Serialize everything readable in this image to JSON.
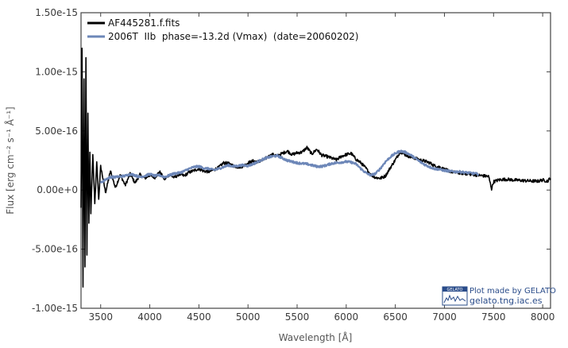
{
  "chart_data": {
    "type": "line",
    "title": "",
    "xlabel": "Wavelength [Å]",
    "ylabel": "Flux [erg cm⁻² s⁻¹ Å⁻¹]",
    "xlim": [
      3300,
      8080
    ],
    "ylim": [
      -1e-15,
      1.5e-15
    ],
    "x_ticks": [
      3500,
      4000,
      4500,
      5000,
      5500,
      6000,
      6500,
      7000,
      7500,
      8000
    ],
    "x_tick_labels": [
      "3500",
      "4000",
      "4500",
      "5000",
      "5500",
      "6000",
      "6500",
      "7000",
      "7500",
      "8000"
    ],
    "y_ticks": [
      -1e-15,
      -5e-16,
      0,
      5e-16,
      1e-15,
      1.5e-15
    ],
    "y_tick_labels": [
      "-1.00e-15",
      "-5.00e-16",
      "0.00e+0",
      "5.00e-16",
      "1.00e-15",
      "1.50e-15"
    ],
    "grid": false,
    "legend_position": "top-left",
    "series": [
      {
        "name": "AF445281.f.fits",
        "color": "#000000",
        "noise": 1.3e-17,
        "x": [
          3300,
          3310,
          3320,
          3330,
          3340,
          3350,
          3360,
          3370,
          3380,
          3390,
          3400,
          3420,
          3440,
          3460,
          3480,
          3500,
          3550,
          3600,
          3650,
          3700,
          3750,
          3800,
          3850,
          3900,
          3950,
          4000,
          4050,
          4100,
          4150,
          4200,
          4250,
          4300,
          4350,
          4400,
          4450,
          4500,
          4550,
          4600,
          4650,
          4700,
          4750,
          4800,
          4850,
          4900,
          4950,
          5000,
          5050,
          5100,
          5150,
          5200,
          5250,
          5300,
          5350,
          5400,
          5450,
          5500,
          5550,
          5600,
          5650,
          5700,
          5750,
          5800,
          5850,
          5900,
          5950,
          6000,
          6050,
          6100,
          6150,
          6200,
          6250,
          6300,
          6350,
          6400,
          6450,
          6500,
          6550,
          6600,
          6650,
          6700,
          6750,
          6800,
          6850,
          6900,
          6950,
          7000,
          7050,
          7100,
          7150,
          7200,
          7250,
          7300,
          7350,
          7400,
          7450,
          7460,
          7480,
          7500,
          7550,
          7600,
          7650,
          7700,
          7750,
          7800,
          7850,
          7900,
          7950,
          8000,
          8050,
          8080
        ],
        "y": [
          -1.5e-16,
          1.2e-15,
          -8.2e-16,
          9.4e-16,
          -6.5e-16,
          1.12e-15,
          -5.5e-16,
          6.5e-16,
          -2.8e-16,
          3.2e-16,
          -2e-16,
          3e-16,
          -1.2e-16,
          2.3e-16,
          -8e-17,
          2e-16,
          -2e-17,
          1.6e-16,
          2e-17,
          1.3e-16,
          4e-17,
          1.35e-16,
          6e-17,
          1.3e-16,
          1e-16,
          1.25e-16,
          1.05e-16,
          1.55e-16,
          9e-17,
          1.3e-16,
          1.05e-16,
          1.35e-16,
          1.2e-16,
          1.5e-16,
          1.65e-16,
          1.8e-16,
          1.6e-16,
          1.55e-16,
          1.7e-16,
          1.9e-16,
          2.3e-16,
          2.25e-16,
          2.05e-16,
          1.95e-16,
          2e-16,
          2.3e-16,
          2.45e-16,
          2.4e-16,
          2.5e-16,
          2.8e-16,
          3e-16,
          2.9e-16,
          3.1e-16,
          3.3e-16,
          3e-16,
          3.15e-16,
          3.2e-16,
          3.6e-16,
          3.05e-16,
          3.45e-16,
          2.95e-16,
          2.85e-16,
          2.7e-16,
          2.55e-16,
          2.85e-16,
          3e-16,
          3.1e-16,
          2.6e-16,
          2.3e-16,
          1.85e-16,
          1.3e-16,
          1.05e-16,
          1e-16,
          1.2e-16,
          1.9e-16,
          2.55e-16,
          3.25e-16,
          3e-16,
          2.8e-16,
          2.7e-16,
          2.55e-16,
          2.45e-16,
          2.3e-16,
          2.05e-16,
          1.95e-16,
          1.75e-16,
          1.6e-16,
          1.5e-16,
          1.45e-16,
          1.4e-16,
          1.35e-16,
          1.3e-16,
          1.25e-16,
          1.2e-16,
          1.15e-16,
          8e-17,
          1e-17,
          7e-17,
          8.5e-17,
          9e-17,
          9e-17,
          8.5e-17,
          8.3e-17,
          8e-17,
          7.8e-17,
          7.6e-17,
          7.5e-17,
          8.5e-17,
          7.5e-17,
          1.05e-16
        ]
      },
      {
        "name": "2006T  IIb  phase=-13.2d (Vmax)  (date=20060202)",
        "color": "#6d87b8",
        "noise": 9e-18,
        "x": [
          3500,
          3550,
          3600,
          3650,
          3700,
          3750,
          3800,
          3850,
          3900,
          3950,
          4000,
          4050,
          4100,
          4150,
          4200,
          4250,
          4300,
          4350,
          4400,
          4450,
          4500,
          4550,
          4600,
          4650,
          4700,
          4750,
          4800,
          4850,
          4900,
          4950,
          5000,
          5050,
          5100,
          5150,
          5200,
          5250,
          5300,
          5350,
          5400,
          5450,
          5500,
          5550,
          5600,
          5650,
          5700,
          5750,
          5800,
          5850,
          5900,
          5950,
          6000,
          6050,
          6100,
          6150,
          6200,
          6250,
          6300,
          6350,
          6400,
          6450,
          6500,
          6550,
          6600,
          6650,
          6700,
          6750,
          6800,
          6850,
          6900,
          6950,
          7000,
          7050,
          7100,
          7150,
          7200,
          7250,
          7300,
          7350
        ],
        "y": [
          6e-17,
          9e-17,
          1.1e-16,
          1.1e-16,
          1.15e-16,
          1.2e-16,
          1.35e-16,
          1.25e-16,
          1.1e-16,
          1.2e-16,
          1.35e-16,
          1.2e-16,
          1.25e-16,
          1.1e-16,
          1.25e-16,
          1.4e-16,
          1.45e-16,
          1.6e-16,
          1.8e-16,
          1.95e-16,
          2e-16,
          1.85e-16,
          1.8e-16,
          1.7e-16,
          1.8e-16,
          1.95e-16,
          2.1e-16,
          2e-16,
          2.05e-16,
          2.1e-16,
          2.05e-16,
          2.2e-16,
          2.4e-16,
          2.6e-16,
          2.75e-16,
          2.85e-16,
          2.9e-16,
          2.7e-16,
          2.5e-16,
          2.4e-16,
          2.3e-16,
          2.25e-16,
          2.2e-16,
          2.1e-16,
          2e-16,
          2e-16,
          2.1e-16,
          2.25e-16,
          2.3e-16,
          2.35e-16,
          2.4e-16,
          2.35e-16,
          2.2e-16,
          1.8e-16,
          1.45e-16,
          1.25e-16,
          1.4e-16,
          1.85e-16,
          2.4e-16,
          2.8e-16,
          3.1e-16,
          3.3e-16,
          3.2e-16,
          3e-16,
          2.7e-16,
          2.4e-16,
          2.15e-16,
          1.95e-16,
          1.8e-16,
          1.75e-16,
          1.65e-16,
          1.6e-16,
          1.55e-16,
          1.55e-16,
          1.5e-16,
          1.45e-16,
          1.4e-16,
          1.35e-16
        ]
      }
    ],
    "credit": {
      "logo_text": "GELATO",
      "line1": "Plot made by GELATO",
      "line2": "gelato.tng.iac.es"
    }
  }
}
